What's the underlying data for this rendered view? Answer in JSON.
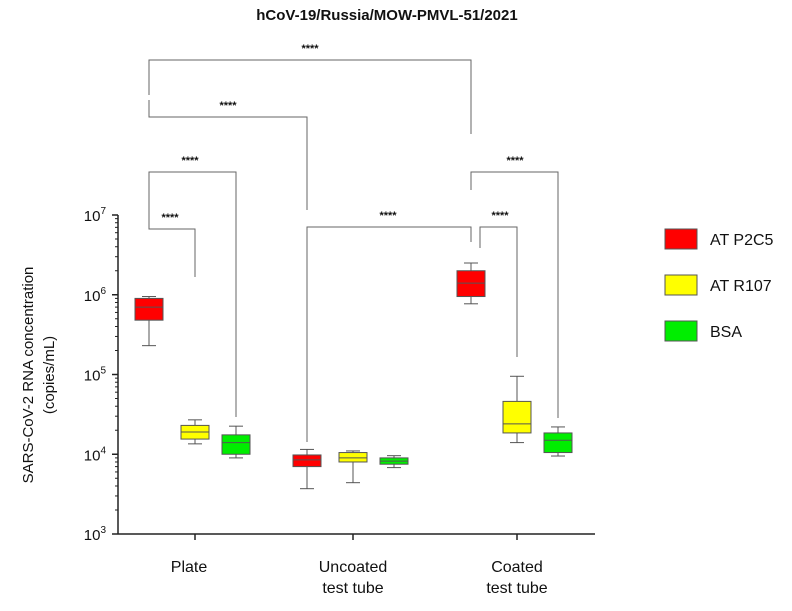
{
  "chart_data": {
    "type": "box",
    "title": "hCoV-19/Russia/MOW-PMVL-51/2021",
    "ylabel_line1": "SARS-CoV-2 RNA concentration",
    "ylabel_line2": "(copies/mL)",
    "yscale": "log",
    "ylim": [
      1000,
      10000000
    ],
    "yticks": [
      {
        "value": 10000000,
        "base": "10",
        "exp": "7"
      },
      {
        "value": 1000000,
        "base": "10",
        "exp": "6"
      },
      {
        "value": 100000,
        "base": "10",
        "exp": "5"
      },
      {
        "value": 10000,
        "base": "10",
        "exp": "4"
      },
      {
        "value": 1000,
        "base": "10",
        "exp": "3"
      }
    ],
    "categories": [
      {
        "lines": [
          "Plate"
        ]
      },
      {
        "lines": [
          "Uncoated",
          "test tube"
        ]
      },
      {
        "lines": [
          "Coated",
          "test tube"
        ]
      }
    ],
    "series": [
      {
        "name": "AT P2C5",
        "color": "#ff0000",
        "boxes": [
          {
            "min": 230000,
            "q1": 480000,
            "median": 700000,
            "q3": 900000,
            "max": 950000
          },
          {
            "min": 3700,
            "q1": 7000,
            "median": 8500,
            "q3": 9800,
            "max": 11500
          },
          {
            "min": 770000,
            "q1": 950000,
            "median": 1400000,
            "q3": 2000000,
            "max": 2500000
          }
        ]
      },
      {
        "name": "AT R107",
        "color": "#ffff00",
        "boxes": [
          {
            "min": 13500,
            "q1": 15500,
            "median": 19000,
            "q3": 23000,
            "max": 27000
          },
          {
            "min": 4400,
            "q1": 8000,
            "median": 9000,
            "q3": 10500,
            "max": 11000
          },
          {
            "min": 14000,
            "q1": 18500,
            "median": 24000,
            "q3": 46000,
            "max": 95000
          }
        ]
      },
      {
        "name": "BSA",
        "color": "#00ee00",
        "boxes": [
          {
            "min": 9000,
            "q1": 10000,
            "median": 14000,
            "q3": 17500,
            "max": 22500
          },
          {
            "min": 6800,
            "q1": 7500,
            "median": 8200,
            "q3": 9000,
            "max": 9600
          },
          {
            "min": 9500,
            "q1": 10500,
            "median": 15000,
            "q3": 18500,
            "max": 22000
          }
        ]
      }
    ],
    "significance": [
      {
        "label": "****",
        "from": [
          0,
          0
        ],
        "to": [
          1,
          0
        ]
      },
      {
        "label": "****",
        "from": [
          0,
          0
        ],
        "to": [
          0,
          1
        ]
      },
      {
        "label": "****",
        "from": [
          0,
          0
        ],
        "to": [
          0,
          2
        ]
      },
      {
        "label": "****",
        "from": [
          1,
          0
        ],
        "to": [
          2,
          0
        ]
      },
      {
        "label": "****",
        "from": [
          0,
          0
        ],
        "to": [
          2,
          0
        ]
      },
      {
        "label": "****",
        "from": [
          2,
          0
        ],
        "to": [
          2,
          1
        ]
      },
      {
        "label": "****",
        "from": [
          2,
          0
        ],
        "to": [
          2,
          2
        ]
      }
    ]
  }
}
